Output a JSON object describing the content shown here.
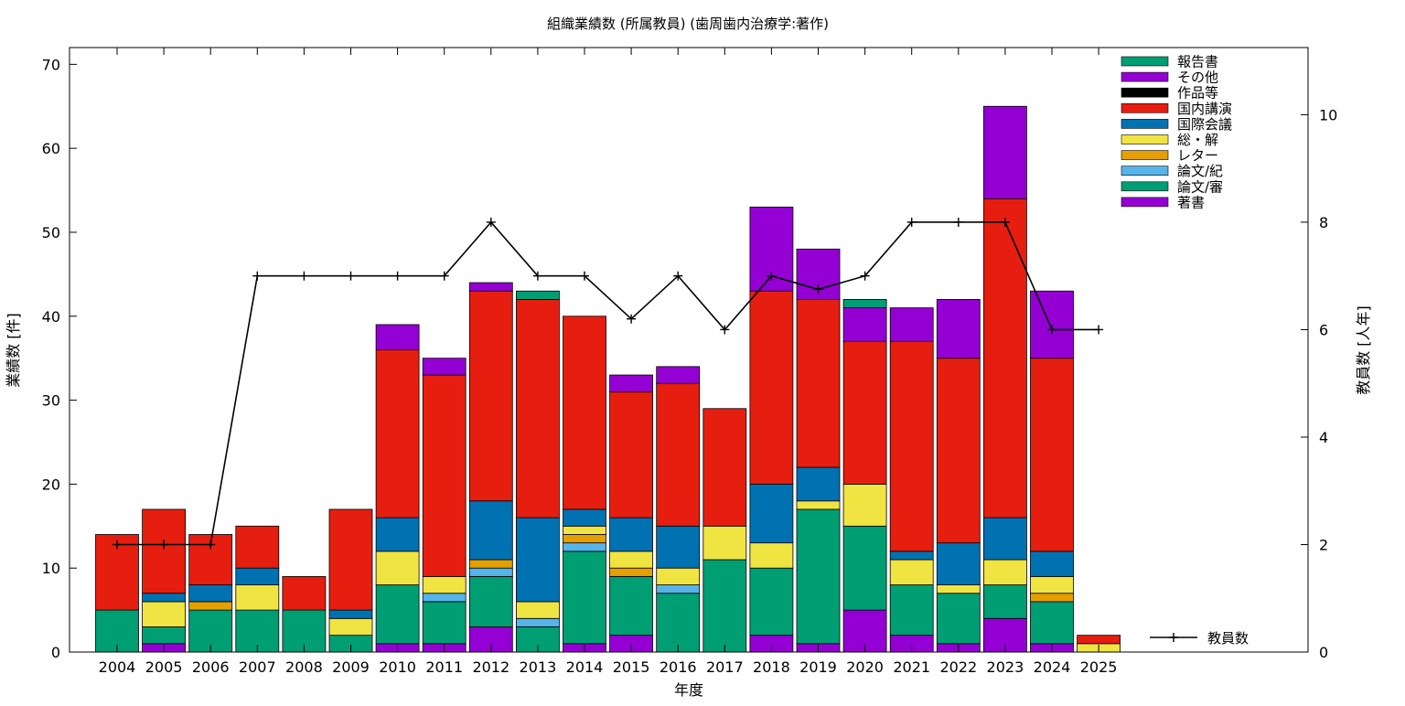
{
  "chart_data": {
    "type": "bar",
    "stacked": true,
    "title": "組織業績数 (所属教員) (歯周歯内治療学:著作)",
    "xlabel": "年度",
    "ylabel": "業績数 [件]",
    "y2label": "教員数 [人年]",
    "ylim": [
      0,
      72
    ],
    "y_ticks": [
      "0",
      "10",
      "20",
      "30",
      "40",
      "50",
      "60",
      "70"
    ],
    "y2lim": [
      0,
      11.25
    ],
    "y2_ticks": [
      "0",
      "2",
      "4",
      "6",
      "8",
      "10"
    ],
    "grid": false,
    "legend_position": "top-right",
    "categories": [
      "2004",
      "2005",
      "2006",
      "2007",
      "2008",
      "2009",
      "2010",
      "2011",
      "2012",
      "2013",
      "2014",
      "2015",
      "2016",
      "2017",
      "2018",
      "2019",
      "2020",
      "2021",
      "2022",
      "2023",
      "2024",
      "2025"
    ],
    "series": [
      {
        "name": "著書",
        "color": "#9400d3",
        "values": [
          0,
          1,
          0,
          0,
          0,
          0,
          1,
          1,
          3,
          0,
          1,
          2,
          0,
          0,
          2,
          1,
          5,
          2,
          1,
          4,
          1,
          0
        ]
      },
      {
        "name": "論文/審",
        "color": "#009e73",
        "values": [
          5,
          2,
          5,
          5,
          5,
          2,
          7,
          5,
          6,
          3,
          11,
          7,
          7,
          11,
          8,
          16,
          10,
          6,
          6,
          4,
          5,
          0
        ]
      },
      {
        "name": "論文/紀",
        "color": "#56b4e9",
        "values": [
          0,
          0,
          0,
          0,
          0,
          0,
          0,
          1,
          1,
          1,
          1,
          0,
          1,
          0,
          0,
          0,
          0,
          0,
          0,
          0,
          0,
          0
        ]
      },
      {
        "name": "レター",
        "color": "#e69f00",
        "values": [
          0,
          0,
          1,
          0,
          0,
          0,
          0,
          0,
          1,
          0,
          1,
          1,
          0,
          0,
          0,
          0,
          0,
          0,
          0,
          0,
          1,
          0
        ]
      },
      {
        "name": "総・解",
        "color": "#f0e442",
        "values": [
          0,
          3,
          0,
          3,
          0,
          2,
          4,
          2,
          0,
          2,
          1,
          2,
          2,
          4,
          3,
          1,
          5,
          3,
          1,
          3,
          2,
          1
        ]
      },
      {
        "name": "国際会議",
        "color": "#0072b2",
        "values": [
          0,
          1,
          2,
          2,
          0,
          1,
          4,
          0,
          7,
          10,
          2,
          4,
          5,
          0,
          7,
          4,
          0,
          1,
          5,
          5,
          3,
          0
        ]
      },
      {
        "name": "国内講演",
        "color": "#e51e10",
        "values": [
          9,
          10,
          6,
          5,
          4,
          12,
          20,
          24,
          25,
          26,
          23,
          15,
          17,
          14,
          23,
          20,
          17,
          25,
          22,
          38,
          23,
          1
        ]
      },
      {
        "name": "作品等",
        "color": "#000000",
        "values": [
          0,
          0,
          0,
          0,
          0,
          0,
          0,
          0,
          0,
          0,
          0,
          0,
          0,
          0,
          0,
          0,
          0,
          0,
          0,
          0,
          0,
          0
        ]
      },
      {
        "name": "その他",
        "color": "#9400d3",
        "values": [
          0,
          0,
          0,
          0,
          0,
          0,
          3,
          2,
          1,
          0,
          0,
          2,
          2,
          0,
          10,
          6,
          4,
          4,
          7,
          11,
          8,
          0
        ]
      },
      {
        "name": "報告書",
        "color": "#009e73",
        "values": [
          0,
          0,
          0,
          0,
          0,
          0,
          0,
          0,
          0,
          1,
          0,
          0,
          0,
          0,
          0,
          0,
          1,
          0,
          0,
          0,
          0,
          0
        ]
      }
    ],
    "legend_order": [
      "報告書",
      "その他",
      "作品等",
      "国内講演",
      "国際会議",
      "総・解",
      "レター",
      "論文/紀",
      "論文/審",
      "著書"
    ],
    "line_series": {
      "name": "教員数",
      "axis": "y2",
      "color": "#000000",
      "values": [
        2,
        2,
        2,
        7,
        7,
        7,
        7,
        7,
        8,
        7,
        7,
        6.2,
        7,
        6,
        7,
        6.75,
        7,
        8,
        8,
        8,
        6,
        6
      ]
    }
  }
}
